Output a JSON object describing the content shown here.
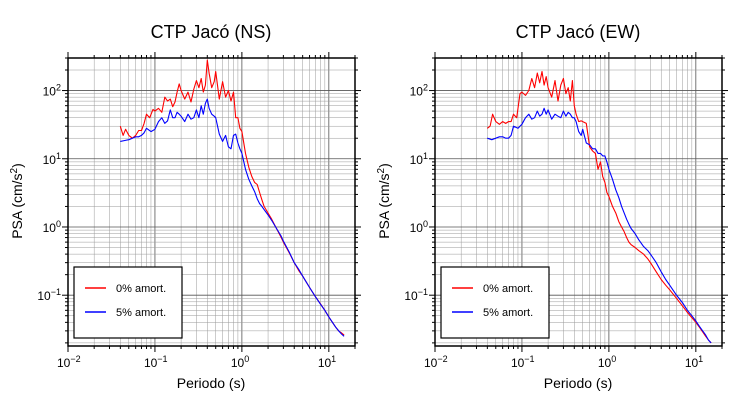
{
  "chart_data": [
    {
      "type": "line",
      "title": "CTP Jacó (NS)",
      "xlabel": "Periodo (s)",
      "ylabel_base": "PSA (cm/s",
      "ylabel_sup": "2",
      "ylabel_close": ")",
      "x_scale": "log",
      "y_scale": "log",
      "xlim": [
        0.01,
        20
      ],
      "ylim": [
        0.018,
        300
      ],
      "x_ticks": [
        {
          "base": "10",
          "exp": "−2"
        },
        {
          "base": "10",
          "exp": "−1"
        },
        {
          "base": "10",
          "exp": "0"
        },
        {
          "base": "10",
          "exp": "1"
        }
      ],
      "y_ticks": [
        {
          "base": "10",
          "exp": "−1"
        },
        {
          "base": "10",
          "exp": "0"
        },
        {
          "base": "10",
          "exp": "1"
        },
        {
          "base": "10",
          "exp": "2"
        }
      ],
      "grid": true,
      "legend_position": "bottom-left",
      "series": [
        {
          "name": "0% amort.",
          "color": "#ff0000",
          "x": [
            0.04,
            0.043,
            0.046,
            0.05,
            0.055,
            0.06,
            0.065,
            0.07,
            0.075,
            0.08,
            0.087,
            0.095,
            0.1,
            0.11,
            0.12,
            0.13,
            0.14,
            0.15,
            0.16,
            0.17,
            0.18,
            0.19,
            0.2,
            0.22,
            0.24,
            0.26,
            0.28,
            0.3,
            0.32,
            0.34,
            0.36,
            0.38,
            0.4,
            0.42,
            0.45,
            0.48,
            0.5,
            0.55,
            0.6,
            0.65,
            0.7,
            0.75,
            0.8,
            0.85,
            0.9,
            0.95,
            1.0,
            1.1,
            1.2,
            1.3,
            1.4,
            1.5,
            1.6,
            1.7,
            1.8,
            2.0,
            2.2,
            2.5,
            2.8,
            3.0,
            3.5,
            4.0,
            4.5,
            5.0,
            6.0,
            7.0,
            8.0,
            9.0,
            10.0,
            11.0,
            12.0,
            13.0,
            14.0,
            15.0
          ],
          "y": [
            30,
            22,
            27,
            22,
            20,
            22,
            26,
            26,
            33,
            45,
            40,
            53,
            50,
            55,
            48,
            80,
            70,
            75,
            58,
            68,
            95,
            125,
            100,
            75,
            95,
            68,
            105,
            140,
            110,
            150,
            95,
            120,
            280,
            180,
            110,
            135,
            190,
            75,
            135,
            80,
            100,
            70,
            95,
            40,
            40,
            28,
            25,
            12,
            7.5,
            5.5,
            4.5,
            4.2,
            3.2,
            2.5,
            2.0,
            1.6,
            1.3,
            0.95,
            0.72,
            0.6,
            0.42,
            0.3,
            0.23,
            0.19,
            0.13,
            0.095,
            0.075,
            0.06,
            0.048,
            0.04,
            0.034,
            0.03,
            0.028,
            0.026
          ]
        },
        {
          "name": "5% amort.",
          "color": "#0000ff",
          "x": [
            0.04,
            0.045,
            0.05,
            0.055,
            0.06,
            0.065,
            0.07,
            0.075,
            0.08,
            0.09,
            0.1,
            0.11,
            0.12,
            0.13,
            0.14,
            0.15,
            0.16,
            0.17,
            0.18,
            0.19,
            0.2,
            0.22,
            0.24,
            0.26,
            0.28,
            0.3,
            0.32,
            0.34,
            0.36,
            0.38,
            0.4,
            0.42,
            0.45,
            0.48,
            0.5,
            0.55,
            0.6,
            0.65,
            0.7,
            0.75,
            0.8,
            0.85,
            0.9,
            0.95,
            1.0,
            1.1,
            1.2,
            1.3,
            1.4,
            1.5,
            1.6,
            1.7,
            1.8,
            2.0,
            2.2,
            2.5,
            2.8,
            3.0,
            3.5,
            4.0,
            4.5,
            5.0,
            6.0,
            7.0,
            8.0,
            9.0,
            10.0,
            11.0,
            12.0,
            13.0,
            14.0,
            15.0
          ],
          "y": [
            18,
            18.5,
            19,
            20,
            21,
            21,
            22,
            24,
            28,
            25,
            27,
            35,
            40,
            33,
            36,
            52,
            40,
            40,
            48,
            45,
            42,
            35,
            45,
            38,
            40,
            52,
            40,
            60,
            45,
            65,
            75,
            55,
            45,
            42,
            40,
            23,
            18,
            22,
            15,
            14,
            22,
            23,
            17,
            14,
            12,
            7,
            5,
            4,
            3.3,
            2.6,
            2.2,
            2.0,
            1.8,
            1.5,
            1.25,
            0.95,
            0.75,
            0.62,
            0.43,
            0.3,
            0.24,
            0.19,
            0.13,
            0.095,
            0.074,
            0.06,
            0.048,
            0.04,
            0.034,
            0.03,
            0.027,
            0.025
          ]
        }
      ]
    },
    {
      "type": "line",
      "title": "CTP Jacó (EW)",
      "xlabel": "Periodo (s)",
      "ylabel_base": "PSA (cm/s",
      "ylabel_sup": "2",
      "ylabel_close": ")",
      "x_scale": "log",
      "y_scale": "log",
      "xlim": [
        0.01,
        20
      ],
      "ylim": [
        0.018,
        300
      ],
      "x_ticks": [
        {
          "base": "10",
          "exp": "−2"
        },
        {
          "base": "10",
          "exp": "−1"
        },
        {
          "base": "10",
          "exp": "0"
        },
        {
          "base": "10",
          "exp": "1"
        }
      ],
      "y_ticks": [
        {
          "base": "10",
          "exp": "−1"
        },
        {
          "base": "10",
          "exp": "0"
        },
        {
          "base": "10",
          "exp": "1"
        },
        {
          "base": "10",
          "exp": "2"
        }
      ],
      "grid": true,
      "legend_position": "bottom-left",
      "series": [
        {
          "name": "0% amort.",
          "color": "#ff0000",
          "x": [
            0.04,
            0.043,
            0.046,
            0.05,
            0.055,
            0.06,
            0.065,
            0.07,
            0.075,
            0.08,
            0.087,
            0.095,
            0.1,
            0.11,
            0.12,
            0.13,
            0.14,
            0.15,
            0.16,
            0.17,
            0.18,
            0.19,
            0.2,
            0.22,
            0.24,
            0.26,
            0.28,
            0.3,
            0.32,
            0.34,
            0.36,
            0.38,
            0.4,
            0.42,
            0.45,
            0.48,
            0.5,
            0.55,
            0.6,
            0.65,
            0.7,
            0.75,
            0.8,
            0.85,
            0.9,
            0.95,
            1.0,
            1.1,
            1.2,
            1.3,
            1.4,
            1.5,
            1.6,
            1.7,
            1.8,
            2.0,
            2.2,
            2.5,
            2.8,
            3.0,
            3.5,
            4.0,
            4.5,
            5.0,
            6.0,
            7.0,
            8.0,
            9.0,
            10.0,
            11.0,
            12.0,
            13.0,
            14.0,
            15.0
          ],
          "y": [
            28,
            30,
            45,
            35,
            32,
            35,
            33,
            35,
            35,
            45,
            40,
            90,
            95,
            85,
            100,
            150,
            110,
            180,
            130,
            190,
            120,
            160,
            110,
            80,
            140,
            70,
            120,
            150,
            90,
            110,
            70,
            140,
            60,
            45,
            35,
            36,
            35,
            33,
            15,
            13,
            12,
            7,
            9,
            5.5,
            4.5,
            3.2,
            2.8,
            2.0,
            1.6,
            1.2,
            1.0,
            0.85,
            0.7,
            0.6,
            0.55,
            0.5,
            0.45,
            0.4,
            0.34,
            0.3,
            0.22,
            0.17,
            0.14,
            0.12,
            0.09,
            0.07,
            0.056,
            0.047,
            0.04,
            0.034,
            0.029,
            0.025,
            0.022,
            0.02
          ]
        },
        {
          "name": "5% amort.",
          "color": "#0000ff",
          "x": [
            0.04,
            0.045,
            0.05,
            0.055,
            0.06,
            0.065,
            0.07,
            0.075,
            0.08,
            0.09,
            0.1,
            0.11,
            0.12,
            0.13,
            0.14,
            0.15,
            0.16,
            0.17,
            0.18,
            0.19,
            0.2,
            0.22,
            0.24,
            0.26,
            0.28,
            0.3,
            0.32,
            0.34,
            0.36,
            0.38,
            0.4,
            0.42,
            0.45,
            0.48,
            0.5,
            0.55,
            0.6,
            0.65,
            0.7,
            0.75,
            0.8,
            0.85,
            0.9,
            0.95,
            1.0,
            1.1,
            1.2,
            1.3,
            1.4,
            1.5,
            1.6,
            1.7,
            1.8,
            2.0,
            2.2,
            2.5,
            2.8,
            3.0,
            3.5,
            4.0,
            4.5,
            5.0,
            6.0,
            7.0,
            8.0,
            9.0,
            10.0,
            11.0,
            12.0,
            13.0,
            14.0,
            15.0
          ],
          "y": [
            20,
            19,
            20,
            21,
            21,
            20,
            20,
            22,
            30,
            28,
            32,
            40,
            45,
            38,
            40,
            50,
            42,
            45,
            55,
            45,
            52,
            38,
            45,
            42,
            40,
            50,
            42,
            48,
            45,
            40,
            40,
            35,
            25,
            22,
            27,
            17,
            16,
            14,
            14,
            12,
            12,
            11,
            11,
            9,
            7,
            5,
            3.5,
            2.7,
            2.0,
            1.6,
            1.3,
            1.1,
            0.95,
            0.8,
            0.65,
            0.52,
            0.45,
            0.4,
            0.3,
            0.22,
            0.17,
            0.14,
            0.1,
            0.078,
            0.06,
            0.05,
            0.042,
            0.035,
            0.03,
            0.026,
            0.022,
            0.02
          ]
        }
      ]
    }
  ]
}
